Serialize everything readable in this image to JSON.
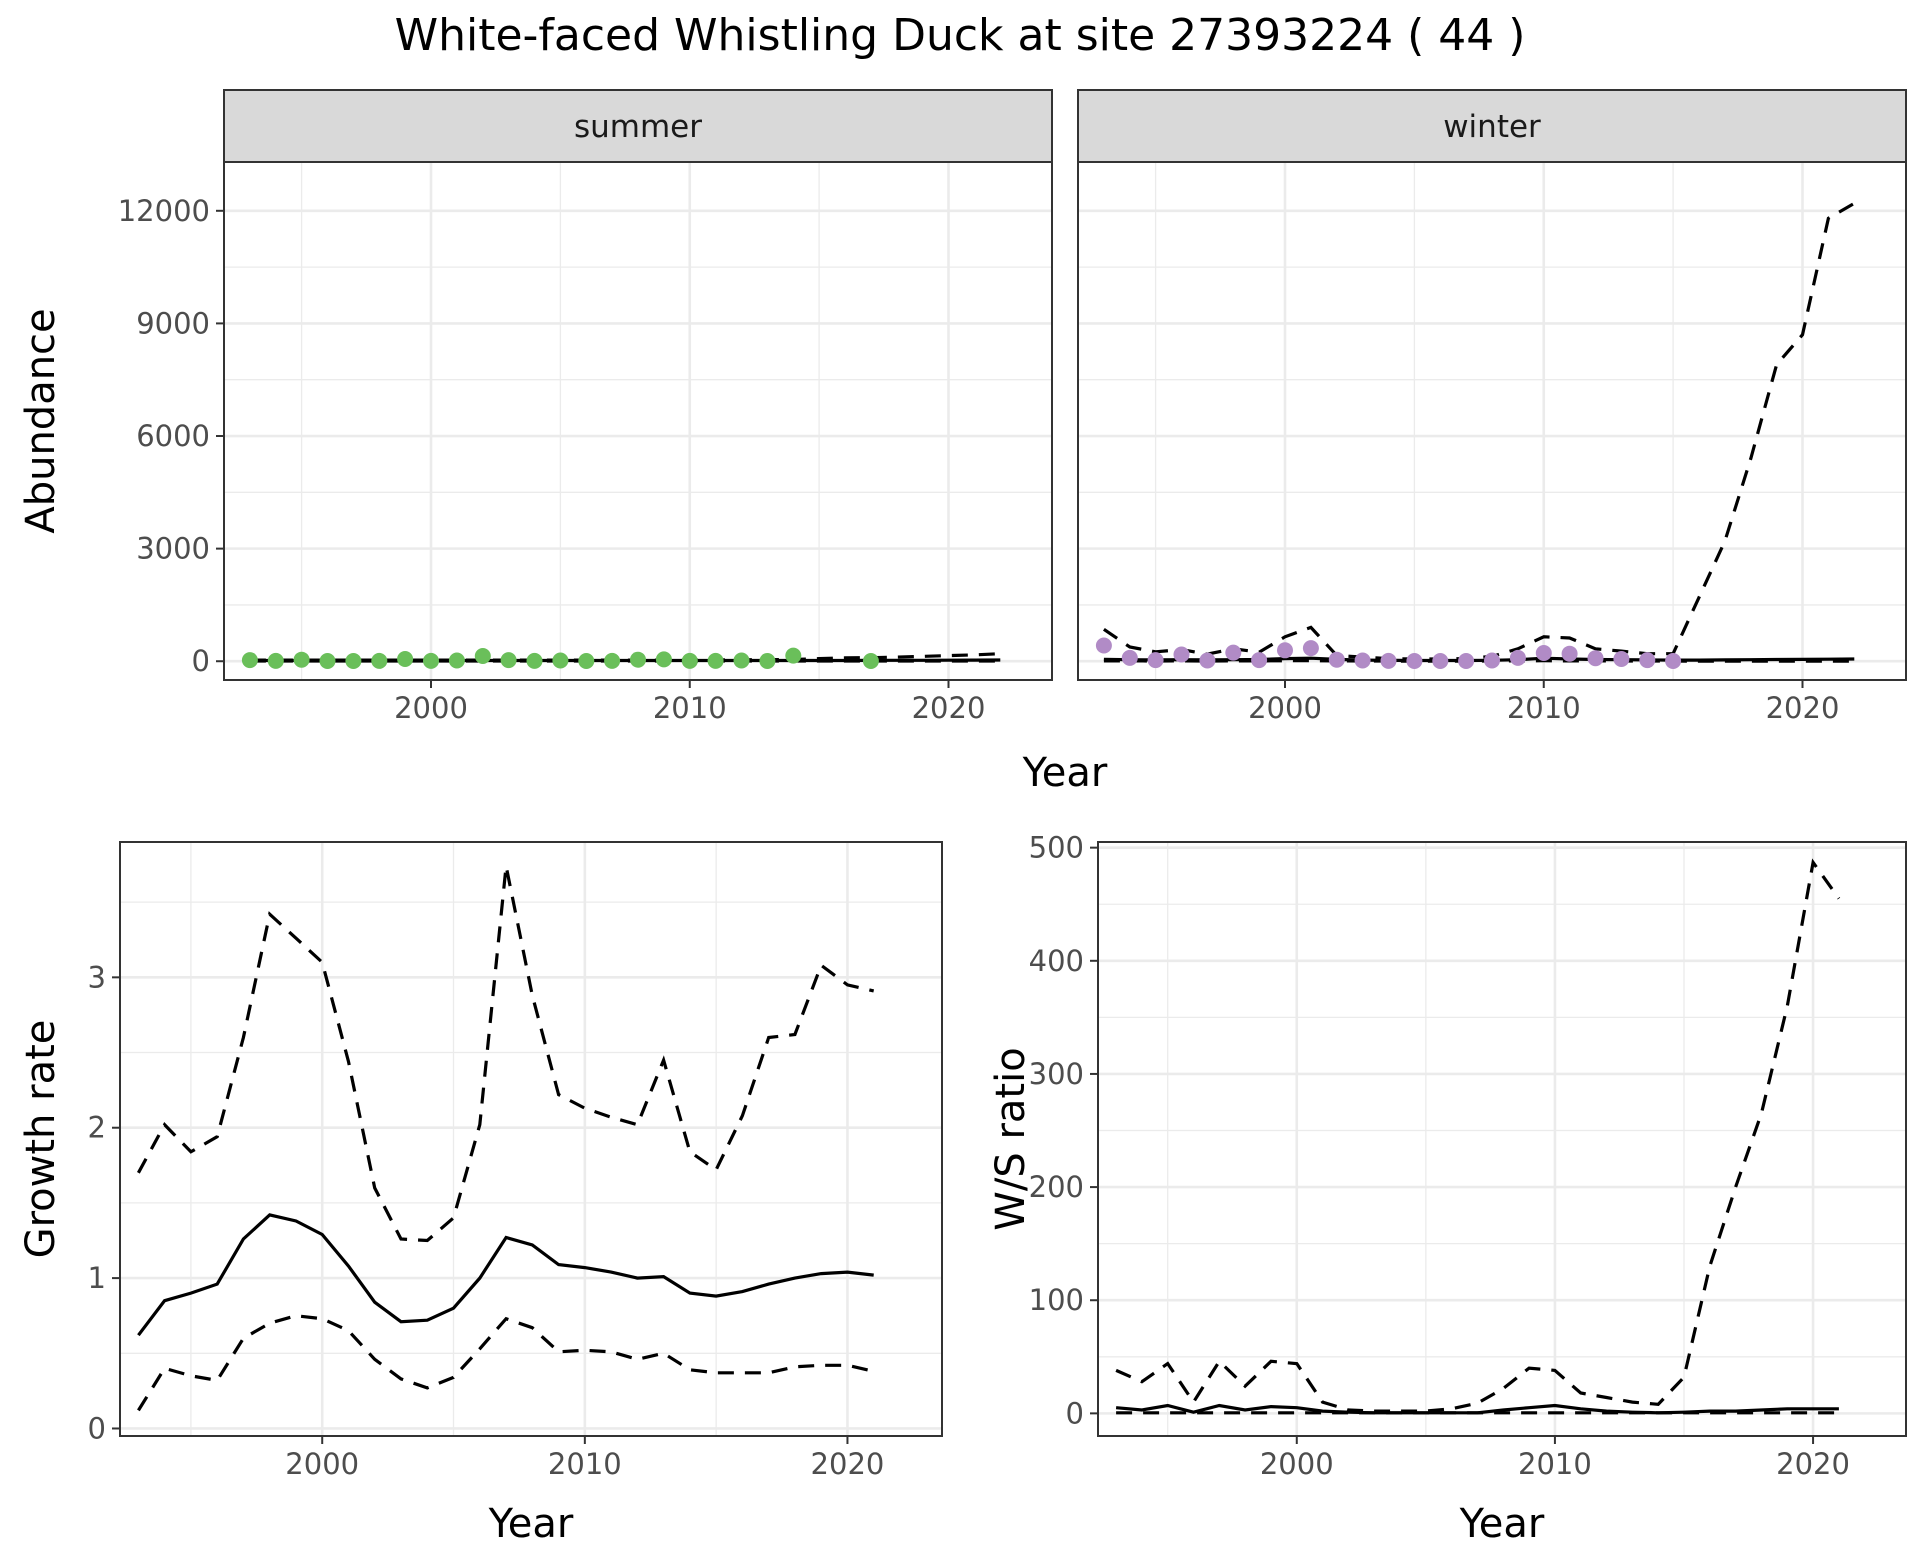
{
  "title": "White-faced Whistling Duck at site 27393224 ( 44 )",
  "chart_data": [
    {
      "id": "abundance",
      "type": "line",
      "facets": [
        "summer",
        "winter"
      ],
      "xlabel": "Year",
      "ylabel": "Abundance",
      "xlim": [
        1992,
        2024
      ],
      "ylim": [
        -500,
        13300
      ],
      "xticks": [
        2000,
        2010,
        2020
      ],
      "yticks": [
        0,
        3000,
        6000,
        9000,
        12000
      ],
      "grid": true,
      "legend": "none",
      "colors": {
        "summer": "#6abf5a",
        "winter": "#b18bc6",
        "line": "#000000"
      },
      "panels": [
        {
          "facet": "summer",
          "points": {
            "x": [
              1993,
              1994,
              1995,
              1996,
              1997,
              1998,
              1999,
              2000,
              2001,
              2002,
              2003,
              2004,
              2005,
              2006,
              2007,
              2008,
              2009,
              2010,
              2011,
              2012,
              2013,
              2014,
              2017
            ],
            "y": [
              30,
              10,
              40,
              5,
              5,
              10,
              60,
              10,
              20,
              140,
              30,
              10,
              20,
              5,
              10,
              40,
              50,
              10,
              10,
              20,
              5,
              150,
              5
            ]
          },
          "lines": {
            "x": [
              1993,
              1995,
              2000,
              2005,
              2010,
              2014,
              2015,
              2016,
              2017,
              2018,
              2019,
              2020,
              2021,
              2022
            ],
            "mean": [
              20,
              20,
              20,
              20,
              20,
              20,
              20,
              20,
              22,
              24,
              26,
              28,
              30,
              32
            ],
            "upper": [
              30,
              30,
              30,
              30,
              30,
              45,
              70,
              90,
              95,
              110,
              130,
              150,
              170,
              200
            ],
            "lower": [
              5,
              5,
              5,
              5,
              5,
              5,
              5,
              5,
              5,
              5,
              5,
              5,
              5,
              5
            ]
          }
        },
        {
          "facet": "winter",
          "points": {
            "x": [
              1993,
              1994,
              1995,
              1996,
              1997,
              1998,
              1999,
              2000,
              2001,
              2002,
              2003,
              2004,
              2005,
              2006,
              2007,
              2008,
              2009,
              2010,
              2011,
              2012,
              2013,
              2014,
              2015
            ],
            "y": [
              420,
              90,
              30,
              180,
              20,
              230,
              30,
              290,
              350,
              40,
              20,
              10,
              5,
              5,
              5,
              20,
              90,
              220,
              200,
              80,
              60,
              30,
              5
            ]
          },
          "lines": {
            "x": [
              1993,
              1994,
              1995,
              1996,
              1997,
              1998,
              1999,
              2000,
              2001,
              2002,
              2003,
              2004,
              2005,
              2006,
              2007,
              2008,
              2009,
              2010,
              2011,
              2012,
              2013,
              2014,
              2015,
              2016,
              2017,
              2018,
              2019,
              2020,
              2021,
              2022
            ],
            "mean": [
              50,
              40,
              35,
              40,
              35,
              40,
              45,
              70,
              80,
              50,
              30,
              25,
              20,
              20,
              20,
              25,
              40,
              80,
              60,
              45,
              40,
              35,
              30,
              30,
              35,
              40,
              45,
              50,
              55,
              60
            ],
            "upper": [
              850,
              380,
              250,
              310,
              190,
              330,
              240,
              650,
              900,
              150,
              110,
              70,
              60,
              60,
              70,
              130,
              330,
              650,
              620,
              330,
              270,
              200,
              200,
              1700,
              3200,
              5400,
              7900,
              8700,
              11800,
              12200
            ],
            "lower": [
              10,
              10,
              5,
              10,
              5,
              10,
              10,
              15,
              15,
              10,
              5,
              5,
              2,
              2,
              2,
              5,
              10,
              15,
              10,
              10,
              5,
              5,
              5,
              2,
              2,
              1,
              1,
              1,
              1,
              1
            ]
          }
        }
      ]
    },
    {
      "id": "growth",
      "type": "line",
      "xlabel": "Year",
      "ylabel": "Growth rate",
      "xlim": [
        1992.3,
        2023.6
      ],
      "ylim": [
        -0.05,
        3.9
      ],
      "xticks": [
        2000,
        2010,
        2020
      ],
      "yticks": [
        0,
        1,
        2,
        3
      ],
      "grid": true,
      "legend": "none",
      "x": [
        1993,
        1994,
        1995,
        1996,
        1997,
        1998,
        1999,
        2000,
        2001,
        2002,
        2003,
        2004,
        2005,
        2006,
        2007,
        2008,
        2009,
        2010,
        2011,
        2012,
        2013,
        2014,
        2015,
        2016,
        2017,
        2018,
        2019,
        2020,
        2021
      ],
      "mean": [
        0.62,
        0.85,
        0.9,
        0.96,
        1.26,
        1.42,
        1.38,
        1.29,
        1.08,
        0.84,
        0.71,
        0.72,
        0.8,
        1.0,
        1.27,
        1.22,
        1.09,
        1.07,
        1.04,
        1.0,
        1.01,
        0.9,
        0.88,
        0.91,
        0.96,
        1.0,
        1.03,
        1.04,
        1.02
      ],
      "upper": [
        1.7,
        2.02,
        1.84,
        1.94,
        2.6,
        3.42,
        3.26,
        3.1,
        2.44,
        1.6,
        1.26,
        1.25,
        1.4,
        2.02,
        3.74,
        2.88,
        2.22,
        2.13,
        2.07,
        2.02,
        2.45,
        1.84,
        1.72,
        2.08,
        2.6,
        2.62,
        3.08,
        2.95,
        2.91
      ],
      "lower": [
        0.12,
        0.4,
        0.35,
        0.32,
        0.6,
        0.7,
        0.75,
        0.73,
        0.65,
        0.46,
        0.33,
        0.27,
        0.34,
        0.53,
        0.73,
        0.67,
        0.51,
        0.52,
        0.51,
        0.46,
        0.5,
        0.39,
        0.37,
        0.37,
        0.37,
        0.41,
        0.42,
        0.42,
        0.38
      ]
    },
    {
      "id": "ratio",
      "type": "line",
      "xlabel": "Year",
      "ylabel": "W/S ratio",
      "xlim": [
        1992.3,
        2023.6
      ],
      "ylim": [
        -20,
        505
      ],
      "xticks": [
        2000,
        2010,
        2020
      ],
      "yticks": [
        0,
        100,
        200,
        300,
        400,
        500
      ],
      "grid": true,
      "legend": "none",
      "x": [
        1993,
        1994,
        1995,
        1996,
        1997,
        1998,
        1999,
        2000,
        2001,
        2002,
        2003,
        2004,
        2005,
        2006,
        2007,
        2008,
        2009,
        2010,
        2011,
        2012,
        2013,
        2014,
        2015,
        2016,
        2017,
        2018,
        2019,
        2020,
        2021
      ],
      "mean": [
        5,
        3,
        7,
        1,
        7,
        3,
        6,
        5,
        2,
        1,
        0.5,
        0.5,
        0.5,
        0.5,
        0.5,
        3,
        5,
        7,
        4,
        2,
        1,
        0.5,
        1,
        2,
        2,
        3,
        4,
        4,
        4
      ],
      "upper": [
        38,
        28,
        44,
        10,
        46,
        24,
        46,
        44,
        10,
        3,
        2,
        2,
        2,
        4,
        9,
        22,
        40,
        38,
        18,
        14,
        10,
        8,
        32,
        130,
        200,
        265,
        360,
        487,
        455
      ],
      "lower": [
        0.5,
        0.5,
        0.5,
        0.5,
        0.5,
        0.5,
        0.5,
        0.5,
        0.5,
        0.5,
        0.5,
        0.5,
        0.5,
        0.5,
        0.5,
        0.5,
        0.5,
        0.5,
        0.5,
        0.5,
        0.5,
        0.5,
        0.5,
        0.5,
        0.5,
        0.5,
        0.5,
        0.5,
        0.5
      ]
    }
  ]
}
